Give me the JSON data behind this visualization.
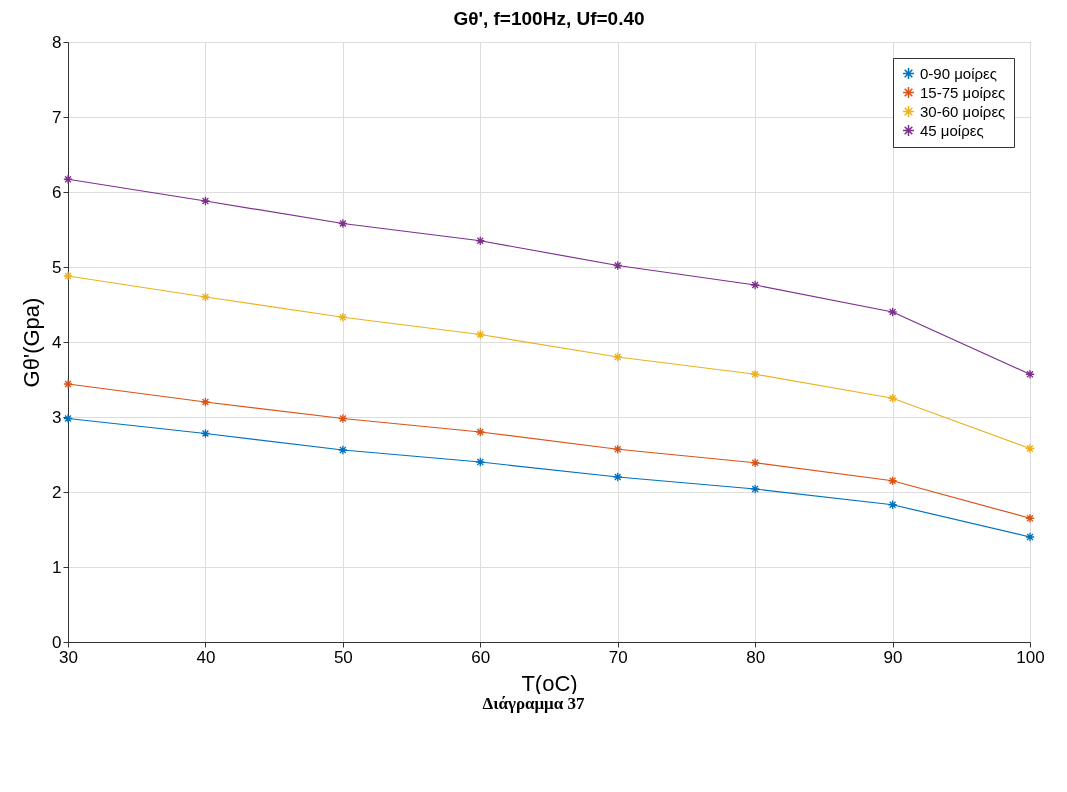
{
  "chart_data": {
    "type": "line",
    "title": "Gθ', f=100Hz, Uf=0.40",
    "xlabel": "T(oC)",
    "ylabel": "Gθ'(Gpa)",
    "annotations": [
      "Διάγραμμα 37"
    ],
    "x": [
      30,
      40,
      50,
      60,
      70,
      80,
      90,
      100
    ],
    "series": [
      {
        "name": "0-90 μοίρες",
        "color": "#0072bd",
        "values": [
          2.98,
          2.78,
          2.56,
          2.4,
          2.2,
          2.04,
          1.83,
          1.4
        ]
      },
      {
        "name": "15-75 μοίρες",
        "color": "#d95319",
        "values": [
          3.44,
          3.2,
          2.98,
          2.8,
          2.57,
          2.39,
          2.15,
          1.65
        ]
      },
      {
        "name": "30-60 μοίρες",
        "color": "#edb120",
        "values": [
          4.88,
          4.6,
          4.33,
          4.1,
          3.8,
          3.57,
          3.25,
          2.58
        ]
      },
      {
        "name": "45 μοίρες",
        "color": "#7e2f8e",
        "values": [
          6.17,
          5.88,
          5.58,
          5.35,
          5.02,
          4.76,
          4.4,
          3.57
        ]
      }
    ],
    "xlim": [
      30,
      100
    ],
    "xticks": [
      30,
      40,
      50,
      60,
      70,
      80,
      90,
      100
    ],
    "ylim": [
      0,
      8
    ],
    "yticks": [
      0,
      1,
      2,
      3,
      4,
      5,
      6,
      7,
      8
    ],
    "grid": true,
    "legend": "top right",
    "marker": "cross"
  }
}
